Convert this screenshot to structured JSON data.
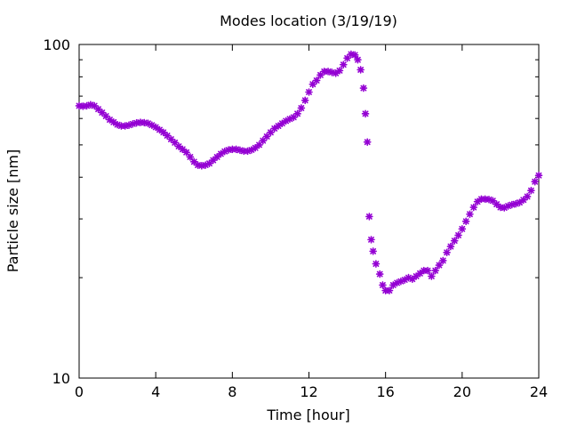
{
  "chart_data": {
    "type": "scatter",
    "title": "Modes location (3/19/19)",
    "xlabel": "Time [hour]",
    "ylabel": "Particle size [nm]",
    "xlim": [
      0,
      24
    ],
    "ylim": [
      10,
      100
    ],
    "yscale": "log",
    "x_ticks": [
      "0",
      "4",
      "8",
      "12",
      "16",
      "20",
      "24"
    ],
    "y_ticks": [
      "10",
      "100"
    ],
    "grid": false,
    "marker": "*",
    "series": [
      {
        "color": "#9400d3",
        "points": [
          [
            0.0,
            65.5
          ],
          [
            0.2,
            65.3
          ],
          [
            0.4,
            65.5
          ],
          [
            0.6,
            66.0
          ],
          [
            0.8,
            65.5
          ],
          [
            1.0,
            64.0
          ],
          [
            1.2,
            62.5
          ],
          [
            1.4,
            61.0
          ],
          [
            1.6,
            59.5
          ],
          [
            1.8,
            58.5
          ],
          [
            2.0,
            57.5
          ],
          [
            2.2,
            57.0
          ],
          [
            2.4,
            57.0
          ],
          [
            2.6,
            57.3
          ],
          [
            2.8,
            57.8
          ],
          [
            3.0,
            58.2
          ],
          [
            3.2,
            58.4
          ],
          [
            3.4,
            58.3
          ],
          [
            3.6,
            58.0
          ],
          [
            3.8,
            57.3
          ],
          [
            4.0,
            56.5
          ],
          [
            4.2,
            55.5
          ],
          [
            4.4,
            54.5
          ],
          [
            4.6,
            53.3
          ],
          [
            4.8,
            52.0
          ],
          [
            5.0,
            50.8
          ],
          [
            5.2,
            49.5
          ],
          [
            5.4,
            48.5
          ],
          [
            5.6,
            47.5
          ],
          [
            5.8,
            46.0
          ],
          [
            6.0,
            44.5
          ],
          [
            6.2,
            43.5
          ],
          [
            6.4,
            43.3
          ],
          [
            6.6,
            43.5
          ],
          [
            6.8,
            44.0
          ],
          [
            7.0,
            45.0
          ],
          [
            7.2,
            46.0
          ],
          [
            7.4,
            47.0
          ],
          [
            7.6,
            47.8
          ],
          [
            7.8,
            48.3
          ],
          [
            8.0,
            48.5
          ],
          [
            8.2,
            48.5
          ],
          [
            8.4,
            48.2
          ],
          [
            8.6,
            47.9
          ],
          [
            8.8,
            47.9
          ],
          [
            9.0,
            48.3
          ],
          [
            9.2,
            49.0
          ],
          [
            9.4,
            50.0
          ],
          [
            9.6,
            51.5
          ],
          [
            9.8,
            53.0
          ],
          [
            10.0,
            54.5
          ],
          [
            10.2,
            56.0
          ],
          [
            10.4,
            57.0
          ],
          [
            10.6,
            58.0
          ],
          [
            10.8,
            59.0
          ],
          [
            11.0,
            59.8
          ],
          [
            11.2,
            60.5
          ],
          [
            11.4,
            62.0
          ],
          [
            11.6,
            64.5
          ],
          [
            11.8,
            68.0
          ],
          [
            12.0,
            72.0
          ],
          [
            12.2,
            76.0
          ],
          [
            12.4,
            78.0
          ],
          [
            12.6,
            81.0
          ],
          [
            12.8,
            83.0
          ],
          [
            13.0,
            83.0
          ],
          [
            13.2,
            82.5
          ],
          [
            13.4,
            82.0
          ],
          [
            13.6,
            83.5
          ],
          [
            13.8,
            87.0
          ],
          [
            14.0,
            91.0
          ],
          [
            14.2,
            93.5
          ],
          [
            14.4,
            93.0
          ],
          [
            14.55,
            90.0
          ],
          [
            14.7,
            84.0
          ],
          [
            14.85,
            74.0
          ],
          [
            14.95,
            62.0
          ],
          [
            15.05,
            51.0
          ],
          [
            15.15,
            30.5
          ],
          [
            15.25,
            26.0
          ],
          [
            15.35,
            24.0
          ],
          [
            15.5,
            22.0
          ],
          [
            15.7,
            20.5
          ],
          [
            15.85,
            19.0
          ],
          [
            16.0,
            18.3
          ],
          [
            16.2,
            18.3
          ],
          [
            16.4,
            19.0
          ],
          [
            16.6,
            19.3
          ],
          [
            16.8,
            19.5
          ],
          [
            17.0,
            19.7
          ],
          [
            17.2,
            20.0
          ],
          [
            17.4,
            19.8
          ],
          [
            17.6,
            20.2
          ],
          [
            17.8,
            20.6
          ],
          [
            18.0,
            21.0
          ],
          [
            18.2,
            21.0
          ],
          [
            18.4,
            20.2
          ],
          [
            18.6,
            21.0
          ],
          [
            18.8,
            21.8
          ],
          [
            19.0,
            22.5
          ],
          [
            19.2,
            23.8
          ],
          [
            19.4,
            24.8
          ],
          [
            19.6,
            25.8
          ],
          [
            19.8,
            26.8
          ],
          [
            20.0,
            28.0
          ],
          [
            20.2,
            29.5
          ],
          [
            20.4,
            31.0
          ],
          [
            20.6,
            32.5
          ],
          [
            20.8,
            33.8
          ],
          [
            21.0,
            34.4
          ],
          [
            21.2,
            34.4
          ],
          [
            21.4,
            34.3
          ],
          [
            21.6,
            34.0
          ],
          [
            21.8,
            33.2
          ],
          [
            22.0,
            32.5
          ],
          [
            22.2,
            32.4
          ],
          [
            22.4,
            32.8
          ],
          [
            22.6,
            33.1
          ],
          [
            22.8,
            33.3
          ],
          [
            23.0,
            33.6
          ],
          [
            23.2,
            34.2
          ],
          [
            23.4,
            35.0
          ],
          [
            23.6,
            36.5
          ],
          [
            23.8,
            38.8
          ],
          [
            24.0,
            40.5
          ]
        ]
      }
    ]
  }
}
